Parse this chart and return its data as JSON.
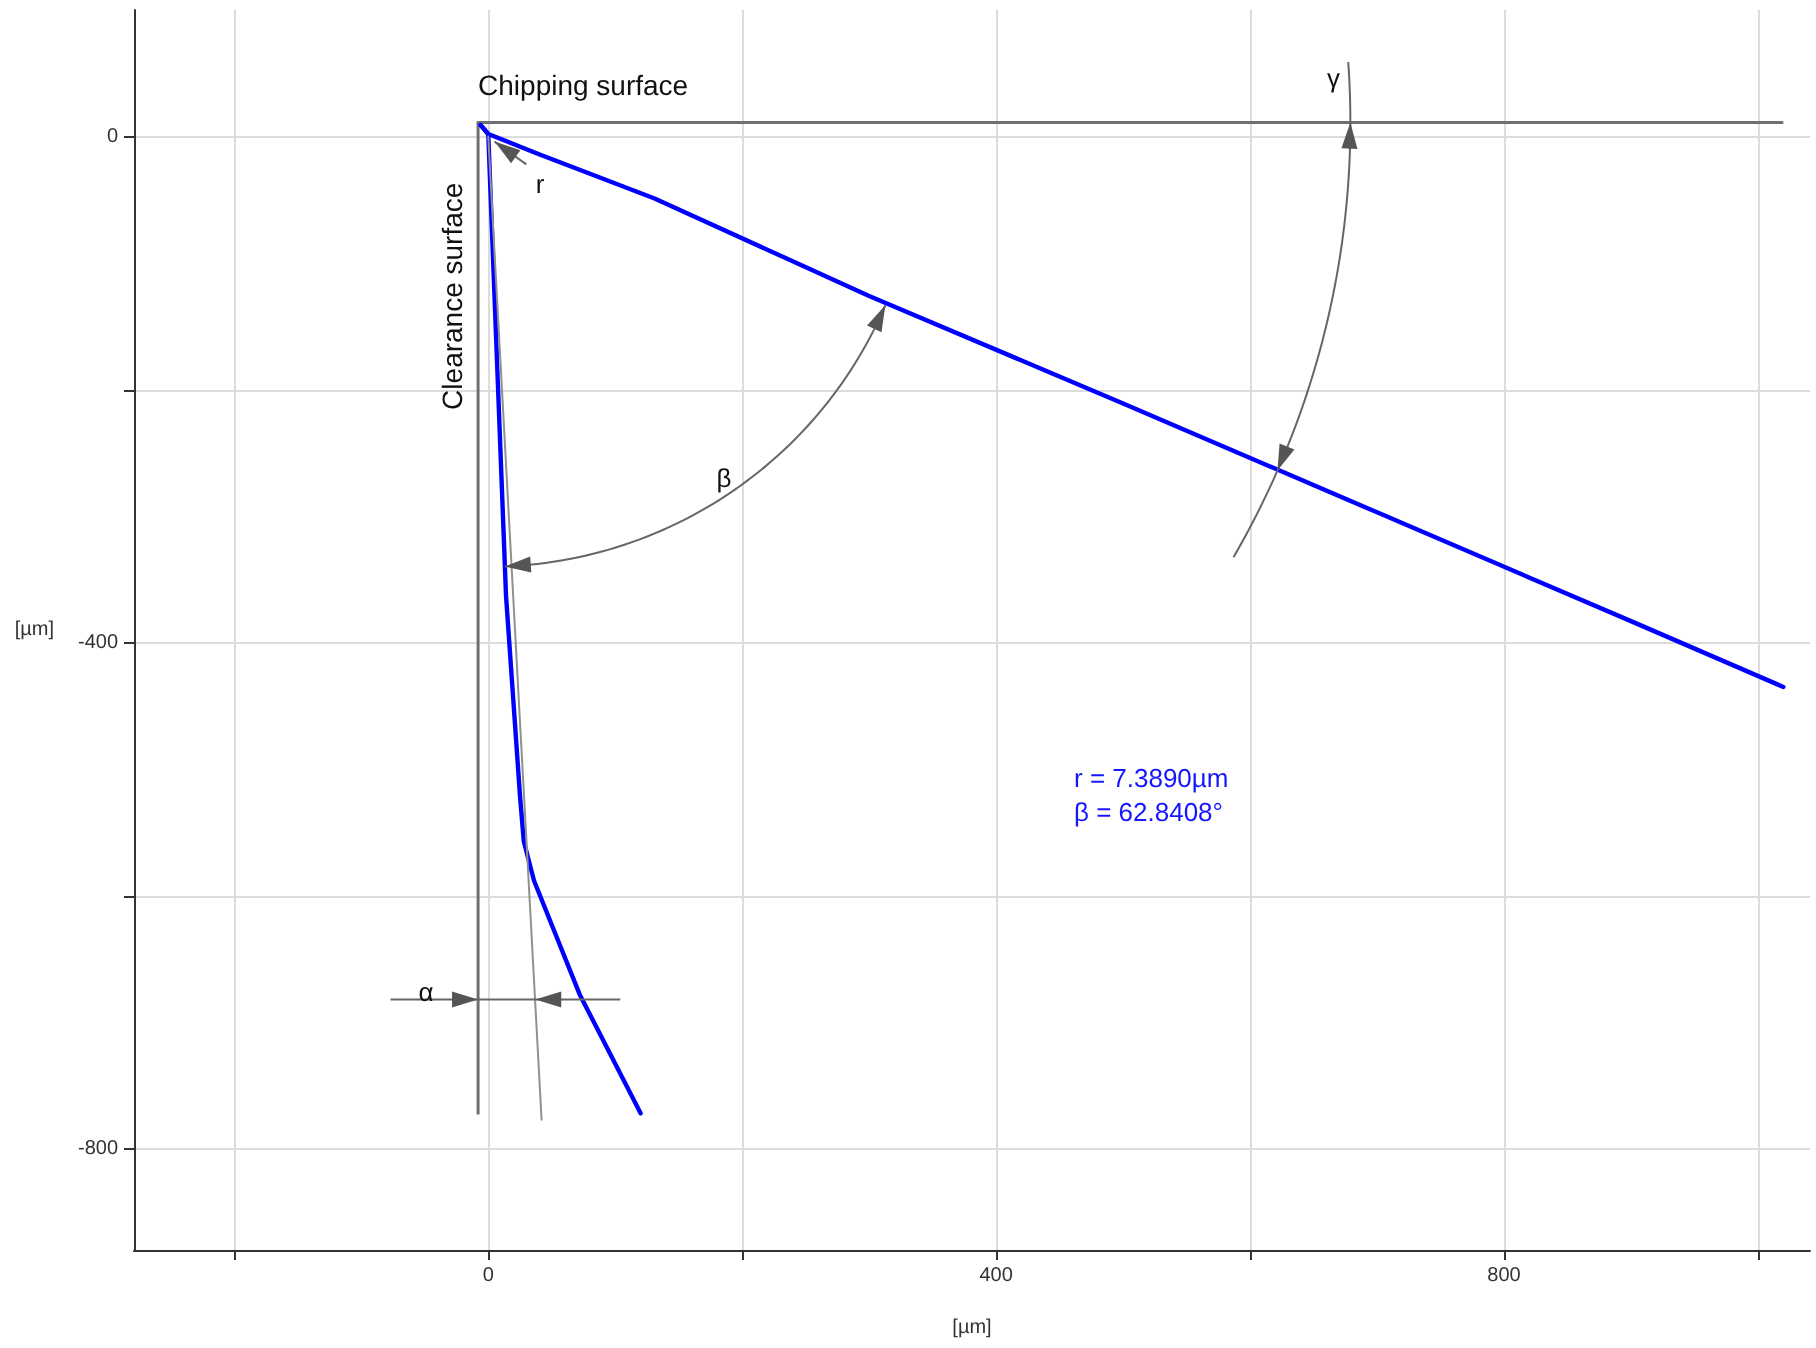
{
  "chart_data": {
    "type": "line",
    "xlabel": "[µm]",
    "ylabel": "[µm]",
    "series": [
      {
        "color": "#0000ff",
        "x": [
          -6,
          0,
          40,
          131,
          300,
          500,
          700,
          900,
          1020
        ],
        "values": [
          9,
          2,
          -14,
          -49,
          -126,
          -211,
          -297,
          -383,
          -435
        ]
      },
      {
        "color": "#0000ff",
        "x": [
          -6,
          0,
          7,
          14,
          25,
          28,
          36,
          72,
          120
        ],
        "values": [
          9,
          2,
          -180,
          -363,
          -521,
          -557,
          -588,
          -678,
          -772
        ]
      },
      {
        "name": "Chipping surface",
        "color": "#707070",
        "x": [
          -8,
          1019
        ],
        "values": [
          11,
          11
        ]
      },
      {
        "name": "Clearance surface",
        "color": "#707070",
        "x": [
          -8,
          -8
        ],
        "values": [
          11,
          -772
        ]
      },
      {
        "color": "#909090",
        "x": [
          0,
          42
        ],
        "values": [
          0,
          -777
        ]
      }
    ],
    "xlim": [
      -279,
      1041
    ],
    "ylim": [
      -880,
      100
    ],
    "xticks": [
      {
        "value": -200,
        "label": null
      },
      0,
      {
        "value": 200,
        "label": null
      },
      400,
      {
        "value": 600,
        "label": null
      },
      800,
      {
        "value": 1000,
        "label": null
      }
    ],
    "yticks": [
      {
        "value": -800,
        "label": "-800"
      },
      {
        "value": -600,
        "label": null
      },
      {
        "value": -400,
        "label": "-400"
      },
      {
        "value": -200,
        "label": null
      },
      0
    ],
    "grid": true,
    "legend": false,
    "marker": "none",
    "line_style": "solid",
    "annotations": [
      "β",
      "γ",
      "α",
      "r",
      "r = 7.3890µm",
      "β = 62.8408°"
    ]
  }
}
